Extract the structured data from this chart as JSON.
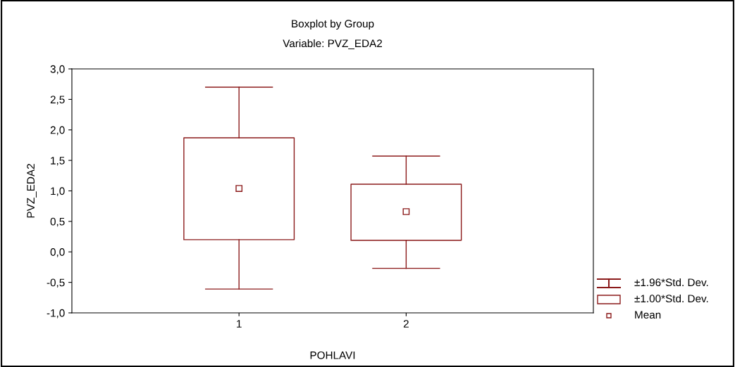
{
  "chart_data": {
    "type": "box",
    "title": "Boxplot by Group",
    "subtitle": "Variable: PVZ_EDA2",
    "xlabel": "POHLAVI",
    "ylabel": "PVZ_EDA2",
    "categories": [
      "1",
      "2"
    ],
    "boxes": [
      {
        "low": -0.61,
        "q1": 0.2,
        "q3": 1.87,
        "high": 2.7,
        "mean": 1.04
      },
      {
        "low": -0.27,
        "q1": 0.19,
        "q3": 1.11,
        "high": 1.57,
        "mean": 0.66
      }
    ],
    "color": "#8b1a1a",
    "ylim": [
      -1,
      3
    ],
    "yticks": [
      {
        "value": -1,
        "label": "-1,0"
      },
      {
        "value": -0.5,
        "label": "-0,5"
      },
      {
        "value": 0,
        "label": "0,0"
      },
      {
        "value": 0.5,
        "label": "0,5"
      },
      {
        "value": 1,
        "label": "1,0"
      },
      {
        "value": 1.5,
        "label": "1,5"
      },
      {
        "value": 2,
        "label": "2,0"
      },
      {
        "value": 2.5,
        "label": "2,5"
      },
      {
        "value": 3,
        "label": "3,0"
      }
    ],
    "annotations": [
      "±1.96*Std. Dev.",
      "±1.00*Std. Dev.",
      "Mean"
    ],
    "grid": false
  }
}
